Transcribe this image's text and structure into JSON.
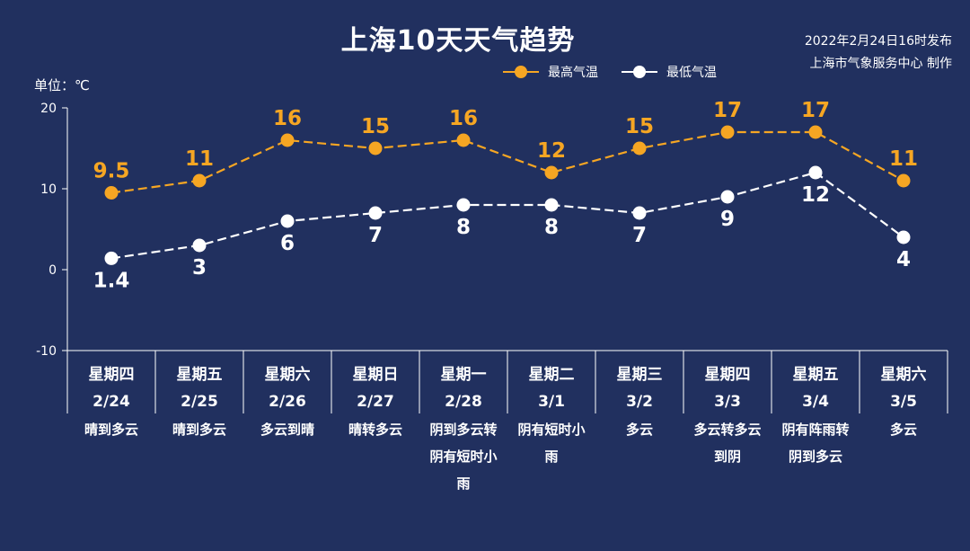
{
  "title": "上海10天天气趋势",
  "issue": {
    "line1": "2022年2月24日16时发布",
    "line2": "上海市气象服务中心 制作"
  },
  "unit_label": "单位：℃",
  "legend": [
    {
      "name": "最高气温",
      "color": "#f6a623"
    },
    {
      "name": "最低气温",
      "color": "#ffffff"
    }
  ],
  "chart_data": {
    "type": "line",
    "ylim": [
      -10,
      20
    ],
    "yticks": [
      "20",
      "10",
      "0",
      "-10"
    ],
    "days": [
      {
        "weekday": "星期四",
        "date": "2/24",
        "weather": [
          "晴到多云"
        ]
      },
      {
        "weekday": "星期五",
        "date": "2/25",
        "weather": [
          "晴到多云"
        ]
      },
      {
        "weekday": "星期六",
        "date": "2/26",
        "weather": [
          "多云到晴"
        ]
      },
      {
        "weekday": "星期日",
        "date": "2/27",
        "weather": [
          "晴转多云"
        ]
      },
      {
        "weekday": "星期一",
        "date": "2/28",
        "weather": [
          "阴到多云转",
          "阴有短时小",
          "雨"
        ]
      },
      {
        "weekday": "星期二",
        "date": "3/1",
        "weather": [
          "阴有短时小",
          "雨"
        ]
      },
      {
        "weekday": "星期三",
        "date": "3/2",
        "weather": [
          "多云"
        ]
      },
      {
        "weekday": "星期四",
        "date": "3/3",
        "weather": [
          "多云转多云",
          "到阴"
        ]
      },
      {
        "weekday": "星期五",
        "date": "3/4",
        "weather": [
          "阴有阵雨转",
          "阴到多云"
        ]
      },
      {
        "weekday": "星期六",
        "date": "3/5",
        "weather": [
          "多云"
        ]
      }
    ],
    "series": [
      {
        "name": "最高气温",
        "color": "#f6a623",
        "values": [
          9.5,
          11,
          16,
          15,
          16,
          12,
          15,
          17,
          17,
          11
        ],
        "labels": [
          "9.5",
          "11",
          "16",
          "15",
          "16",
          "12",
          "15",
          "17",
          "17",
          "11"
        ]
      },
      {
        "name": "最低气温",
        "color": "#ffffff",
        "values": [
          1.4,
          3,
          6,
          7,
          8,
          8,
          7,
          9,
          12,
          4
        ],
        "labels": [
          "1.4",
          "3",
          "6",
          "7",
          "8",
          "8",
          "7",
          "9",
          "12",
          "4"
        ]
      }
    ]
  }
}
